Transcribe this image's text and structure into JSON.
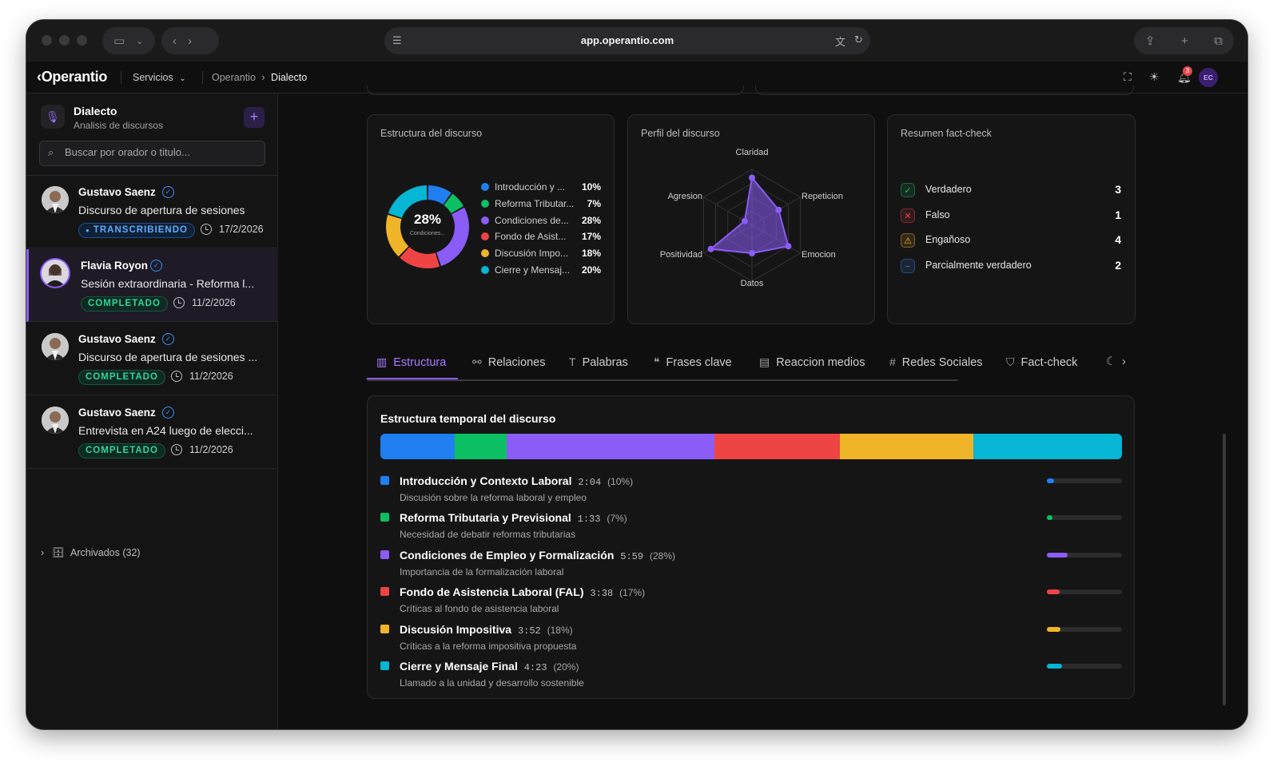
{
  "browser": {
    "url": "app.operantio.com"
  },
  "header": {
    "logo": "Operantio",
    "services_label": "Servicios",
    "breadcrumb": [
      "Operantio",
      "Dialecto"
    ],
    "notification_count": "3",
    "user_initials": "EC"
  },
  "sidebar": {
    "title": "Dialecto",
    "subtitle": "Analisis de discursos",
    "search_placeholder": "Buscar por orador o titulo...",
    "items": [
      {
        "speaker": "Gustavo Saenz",
        "title": "Discurso de apertura de sesiones",
        "status": "TRANSCRIBIENDO",
        "date": "17/2/2026"
      },
      {
        "speaker": "Flavia Royon",
        "title": "Sesión extraordinaria - Reforma l...",
        "status": "COMPLETADO",
        "date": "11/2/2026"
      },
      {
        "speaker": "Gustavo Saenz",
        "title": "Discurso de apertura de sesiones ...",
        "status": "COMPLETADO",
        "date": "11/2/2026"
      },
      {
        "speaker": "Gustavo Saenz",
        "title": "Entrevista en A24 luego de elecci...",
        "status": "COMPLETADO",
        "date": "11/2/2026"
      }
    ],
    "archived_label": "Archivados (32)"
  },
  "structure_card": {
    "title": "Estructura del discurso",
    "center_value": "28%",
    "center_label": "Condiciones...",
    "legend": [
      {
        "label": "Introducción y ...",
        "pct": "10%",
        "color": "#1f7ff0"
      },
      {
        "label": "Reforma Tributar...",
        "pct": "7%",
        "color": "#0dbf63"
      },
      {
        "label": "Condiciones de...",
        "pct": "28%",
        "color": "#8b5cf6"
      },
      {
        "label": "Fondo de Asist...",
        "pct": "17%",
        "color": "#ef4444"
      },
      {
        "label": "Discusión Impo...",
        "pct": "18%",
        "color": "#f0b429"
      },
      {
        "label": "Cierre y Mensaj...",
        "pct": "20%",
        "color": "#06b6d4"
      }
    ]
  },
  "profile_card": {
    "title": "Perfil del discurso",
    "axes": [
      "Claridad",
      "Repeticion",
      "Emocion",
      "Datos",
      "Positividad",
      "Agresion"
    ],
    "values": [
      0.85,
      0.55,
      0.75,
      0.5,
      0.85,
      0.15
    ]
  },
  "factcheck_card": {
    "title": "Resumen fact-check",
    "rows": [
      {
        "label": "Verdadero",
        "count": "3",
        "icon": "check-circle-icon",
        "color": "#22c55e"
      },
      {
        "label": "Falso",
        "count": "1",
        "icon": "x-circle-icon",
        "color": "#ef4444"
      },
      {
        "label": "Engañoso",
        "count": "4",
        "icon": "warning-icon",
        "color": "#f0b429"
      },
      {
        "label": "Parcialmente verdadero",
        "count": "2",
        "icon": "minus-circle-icon",
        "color": "#3b8ef5"
      }
    ]
  },
  "tabs": [
    {
      "label": "Estructura",
      "icon": "bar-chart-icon"
    },
    {
      "label": "Relaciones",
      "icon": "nodes-icon"
    },
    {
      "label": "Palabras",
      "icon": "text-icon"
    },
    {
      "label": "Frases clave",
      "icon": "quote-icon"
    },
    {
      "label": "Reaccion medios",
      "icon": "newspaper-icon"
    },
    {
      "label": "Redes Sociales",
      "icon": "hash-icon"
    },
    {
      "label": "Fact-check",
      "icon": "shield-icon"
    }
  ],
  "timeline": {
    "title": "Estructura temporal del discurso",
    "segments": [
      {
        "title": "Introducción y Contexto Laboral",
        "time": "2:04",
        "pct_label": "(10%)",
        "share": 0.1,
        "desc": "Discusión sobre la reforma laboral y empleo",
        "color": "#1f7ff0"
      },
      {
        "title": "Reforma Tributaria y Previsional",
        "time": "1:33",
        "pct_label": "(7%)",
        "share": 0.07,
        "desc": "Necesidad de debatir reformas tributarias",
        "color": "#0dbf63"
      },
      {
        "title": "Condiciones de Empleo y Formalización",
        "time": "5:59",
        "pct_label": "(28%)",
        "share": 0.28,
        "desc": "Importancia de la formalización laboral",
        "color": "#8b5cf6"
      },
      {
        "title": "Fondo de Asistencia Laboral (FAL)",
        "time": "3:38",
        "pct_label": "(17%)",
        "share": 0.17,
        "desc": "Críticas al fondo de asistencia laboral",
        "color": "#ef4444"
      },
      {
        "title": "Discusión Impositiva",
        "time": "3:52",
        "pct_label": "(18%)",
        "share": 0.18,
        "desc": "Críticas a la reforma impositiva propuesta",
        "color": "#f0b429"
      },
      {
        "title": "Cierre y Mensaje Final",
        "time": "4:23",
        "pct_label": "(20%)",
        "share": 0.2,
        "desc": "Llamado a la unidad y desarrollo sostenible",
        "color": "#06b6d4"
      }
    ]
  }
}
